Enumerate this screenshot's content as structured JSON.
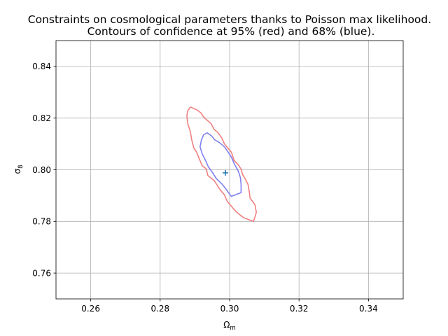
{
  "chart_data": {
    "type": "line",
    "title_lines": [
      "Constraints on cosmological parameters thanks to Poisson max likelihood.",
      "Contours of confidence at 95% (red) and 68% (blue)."
    ],
    "xlabel_main": "Ω",
    "xlabel_sub": "m",
    "ylabel_main": "σ",
    "ylabel_sub": "8",
    "xlim": [
      0.25,
      0.35
    ],
    "ylim": [
      0.75,
      0.85
    ],
    "x_ticks": [
      0.26,
      0.28,
      0.3,
      0.32,
      0.34
    ],
    "x_tick_labels": [
      "0.26",
      "0.28",
      "0.30",
      "0.32",
      "0.34"
    ],
    "y_ticks": [
      0.76,
      0.78,
      0.8,
      0.82,
      0.84
    ],
    "y_tick_labels": [
      "0.76",
      "0.78",
      "0.80",
      "0.82",
      "0.84"
    ],
    "grid": true,
    "series": [
      {
        "color": "#f08080",
        "closed": true,
        "points": [
          [
            0.2887,
            0.8243
          ],
          [
            0.2905,
            0.8232
          ],
          [
            0.2917,
            0.8221
          ],
          [
            0.2925,
            0.8205
          ],
          [
            0.2935,
            0.8192
          ],
          [
            0.2947,
            0.8178
          ],
          [
            0.2955,
            0.8157
          ],
          [
            0.2967,
            0.8143
          ],
          [
            0.2977,
            0.8124
          ],
          [
            0.2985,
            0.81
          ],
          [
            0.2995,
            0.8084
          ],
          [
            0.3005,
            0.8068
          ],
          [
            0.3013,
            0.8036
          ],
          [
            0.3025,
            0.8019
          ],
          [
            0.3033,
            0.8003
          ],
          [
            0.3037,
            0.7982
          ],
          [
            0.3045,
            0.7965
          ],
          [
            0.3053,
            0.7943
          ],
          [
            0.3057,
            0.7911
          ],
          [
            0.3059,
            0.789
          ],
          [
            0.3073,
            0.7865
          ],
          [
            0.3077,
            0.7835
          ],
          [
            0.3069,
            0.78
          ],
          [
            0.3041,
            0.7814
          ],
          [
            0.3033,
            0.7822
          ],
          [
            0.3021,
            0.7835
          ],
          [
            0.3011,
            0.7849
          ],
          [
            0.3003,
            0.7862
          ],
          [
            0.2993,
            0.7878
          ],
          [
            0.2985,
            0.7903
          ],
          [
            0.2973,
            0.7922
          ],
          [
            0.2963,
            0.7943
          ],
          [
            0.2955,
            0.7959
          ],
          [
            0.2937,
            0.7978
          ],
          [
            0.2933,
            0.8003
          ],
          [
            0.2921,
            0.8016
          ],
          [
            0.2915,
            0.8035
          ],
          [
            0.2905,
            0.8068
          ],
          [
            0.2897,
            0.8084
          ],
          [
            0.2891,
            0.8116
          ],
          [
            0.2887,
            0.8146
          ],
          [
            0.2879,
            0.8181
          ],
          [
            0.2877,
            0.8208
          ],
          [
            0.2879,
            0.8227
          ],
          [
            0.2887,
            0.8243
          ]
        ]
      },
      {
        "color": "#8080f0",
        "closed": true,
        "points": [
          [
            0.2935,
            0.8143
          ],
          [
            0.2949,
            0.813
          ],
          [
            0.2957,
            0.8116
          ],
          [
            0.2971,
            0.8105
          ],
          [
            0.2985,
            0.8089
          ],
          [
            0.2995,
            0.807
          ],
          [
            0.3005,
            0.8049
          ],
          [
            0.3015,
            0.8019
          ],
          [
            0.3025,
            0.7995
          ],
          [
            0.3031,
            0.797
          ],
          [
            0.3033,
            0.7943
          ],
          [
            0.3033,
            0.7911
          ],
          [
            0.3017,
            0.7903
          ],
          [
            0.3005,
            0.7897
          ],
          [
            0.2997,
            0.7911
          ],
          [
            0.2987,
            0.793
          ],
          [
            0.2977,
            0.7946
          ],
          [
            0.2961,
            0.7967
          ],
          [
            0.2951,
            0.7989
          ],
          [
            0.2939,
            0.8011
          ],
          [
            0.2931,
            0.8035
          ],
          [
            0.2921,
            0.8062
          ],
          [
            0.2915,
            0.8089
          ],
          [
            0.2919,
            0.8116
          ],
          [
            0.2925,
            0.8135
          ],
          [
            0.2935,
            0.8143
          ]
        ]
      }
    ],
    "marker": {
      "x": 0.2988,
      "y": 0.7988,
      "symbol": "+",
      "color": "#1f77b4"
    }
  }
}
